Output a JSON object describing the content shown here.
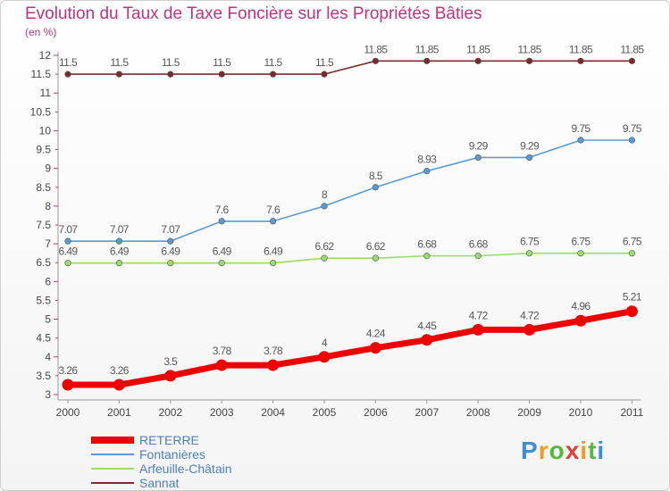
{
  "title": "Evolution du Taux de Taxe Foncière sur les Propriétés Bâties",
  "unit_label": "(en %)",
  "logo_text": "Proxiti",
  "chart_data": {
    "type": "line",
    "x": [
      "2000",
      "2001",
      "2002",
      "2003",
      "2004",
      "2005",
      "2006",
      "2007",
      "2008",
      "2009",
      "2010",
      "2011"
    ],
    "yticks": [
      "3",
      "3.5",
      "4",
      "4.5",
      "5",
      "5.5",
      "6",
      "6.5",
      "7",
      "7.5",
      "8",
      "8.5",
      "9",
      "9.5",
      "10",
      "10.5",
      "11",
      "11.5",
      "12"
    ],
    "ylim": [
      3,
      12
    ],
    "grid": false,
    "legend_position": "bottom-left",
    "series": [
      {
        "name": "RETERRE",
        "color": "#ee0000",
        "values": [
          3.26,
          3.26,
          3.5,
          3.78,
          3.78,
          4,
          4.24,
          4.45,
          4.72,
          4.72,
          4.96,
          5.21
        ],
        "labels": [
          "3.26",
          "3.26",
          "3.5",
          "3.78",
          "3.78",
          "4",
          "4.24",
          "4.45",
          "4.72",
          "4.72",
          "4.96",
          "5.21"
        ]
      },
      {
        "name": "Fontanières",
        "color": "#5b9bd5",
        "values": [
          7.07,
          7.07,
          7.07,
          7.6,
          7.6,
          8,
          8.5,
          8.93,
          9.29,
          9.29,
          9.75,
          9.75
        ],
        "labels": [
          "7.07",
          "7.07",
          "7.07",
          "7.6",
          "7.6",
          "8",
          "8.5",
          "8.93",
          "9.29",
          "9.29",
          "9.75",
          "9.75"
        ]
      },
      {
        "name": "Arfeuille-Châtain",
        "color": "#99dd66",
        "values": [
          6.49,
          6.49,
          6.49,
          6.49,
          6.49,
          6.62,
          6.62,
          6.68,
          6.68,
          6.75,
          6.75,
          6.75
        ],
        "labels": [
          "6.49",
          "6.49",
          "6.49",
          "6.49",
          "6.49",
          "6.62",
          "6.62",
          "6.68",
          "6.68",
          "6.75",
          "6.75",
          "6.75"
        ]
      },
      {
        "name": "Sannat",
        "color": "#7b2b2b",
        "values": [
          11.5,
          11.5,
          11.5,
          11.5,
          11.5,
          11.5,
          11.85,
          11.85,
          11.85,
          11.85,
          11.85,
          11.85
        ],
        "labels": [
          "11.5",
          "11.5",
          "11.5",
          "11.5",
          "11.5",
          "11.5",
          "11.85",
          "11.85",
          "11.85",
          "11.85",
          "11.85",
          "11.85"
        ]
      }
    ]
  }
}
